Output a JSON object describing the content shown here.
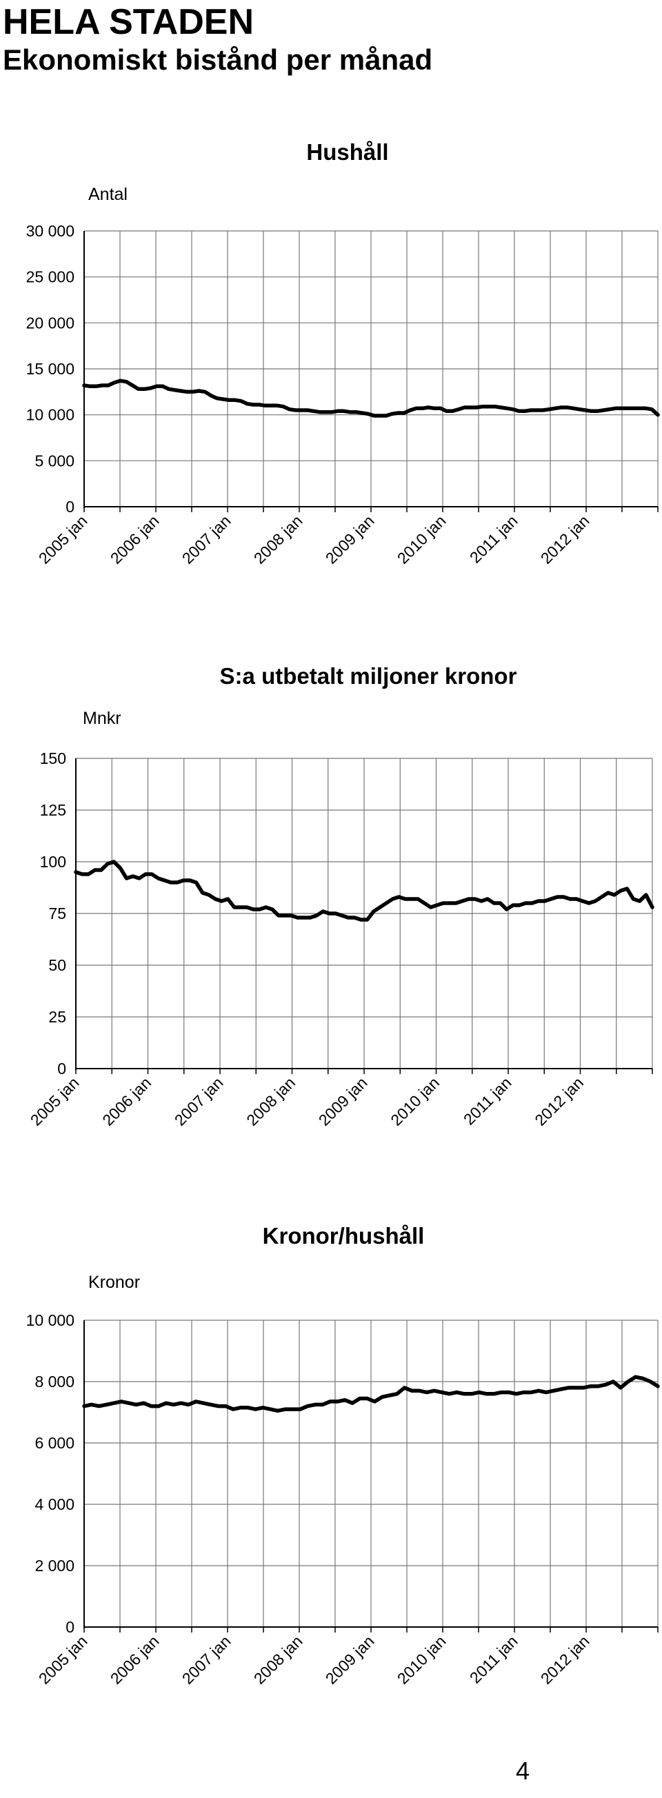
{
  "page": {
    "title": "HELA STADEN",
    "subtitle": "Ekonomiskt bistånd per månad",
    "page_number": "4"
  },
  "chart_data": [
    {
      "type": "line",
      "title": "Hushåll",
      "ylabel": "Antal",
      "xlabel": "",
      "ylim": [
        0,
        30000
      ],
      "yticks": [
        0,
        5000,
        10000,
        15000,
        20000,
        25000,
        30000
      ],
      "ytick_labels": [
        "0",
        "5 000",
        "10 000",
        "15 000",
        "20 000",
        "25 000",
        "30 000"
      ],
      "x_tick_labels": [
        "2005 jan",
        "2006 jan",
        "2007 jan",
        "2008 jan",
        "2009 jan",
        "2010 jan",
        "2011 jan",
        "2012 jan"
      ],
      "grid": true,
      "line_color": "#000000",
      "series": [
        {
          "values": [
            13200,
            13100,
            13100,
            13200,
            13200,
            13500,
            13700,
            13600,
            13200,
            12800,
            12800,
            12900,
            13100,
            13100,
            12800,
            12700,
            12600,
            12500,
            12500,
            12600,
            12500,
            12100,
            11800,
            11700,
            11600,
            11600,
            11500,
            11200,
            11100,
            11100,
            11000,
            11000,
            11000,
            10900,
            10600,
            10500,
            10500,
            10500,
            10400,
            10300,
            10300,
            10300,
            10400,
            10400,
            10300,
            10300,
            10200,
            10100,
            9900,
            9900,
            9900,
            10100,
            10200,
            10200,
            10500,
            10700,
            10700,
            10800,
            10700,
            10700,
            10400,
            10400,
            10600,
            10800,
            10800,
            10800,
            10900,
            10900,
            10900,
            10800,
            10700,
            10600,
            10400,
            10400,
            10500,
            10500,
            10500,
            10600,
            10700,
            10800,
            10800,
            10700,
            10600,
            10500,
            10400,
            10400,
            10500,
            10600,
            10700,
            10700,
            10700,
            10700,
            10700,
            10700,
            10600,
            10000
          ]
        }
      ]
    },
    {
      "type": "line",
      "title": "S:a utbetalt miljoner kronor",
      "ylabel": "Mnkr",
      "xlabel": "",
      "ylim": [
        0,
        150
      ],
      "yticks": [
        0,
        25,
        50,
        75,
        100,
        125,
        150
      ],
      "ytick_labels": [
        "0",
        "25",
        "50",
        "75",
        "100",
        "125",
        "150"
      ],
      "x_tick_labels": [
        "2005 jan",
        "2006 jan",
        "2007 jan",
        "2008 jan",
        "2009 jan",
        "2010 jan",
        "2011 jan",
        "2012 jan"
      ],
      "grid": true,
      "line_color": "#000000",
      "series": [
        {
          "values": [
            95,
            94,
            94,
            96,
            96,
            99,
            100,
            97,
            92,
            93,
            92,
            94,
            94,
            92,
            91,
            90,
            90,
            91,
            91,
            90,
            85,
            84,
            82,
            81,
            82,
            78,
            78,
            78,
            77,
            77,
            78,
            77,
            74,
            74,
            74,
            73,
            73,
            73,
            74,
            76,
            75,
            75,
            74,
            73,
            73,
            72,
            72,
            76,
            78,
            80,
            82,
            83,
            82,
            82,
            82,
            80,
            78,
            79,
            80,
            80,
            80,
            81,
            82,
            82,
            81,
            82,
            80,
            80,
            77,
            79,
            79,
            80,
            80,
            81,
            81,
            82,
            83,
            83,
            82,
            82,
            81,
            80,
            81,
            83,
            85,
            84,
            86,
            87,
            82,
            81,
            84,
            78
          ]
        }
      ]
    },
    {
      "type": "line",
      "title": "Kronor/hushåll",
      "ylabel": "Kronor",
      "xlabel": "",
      "ylim": [
        0,
        10000
      ],
      "yticks": [
        0,
        2000,
        4000,
        6000,
        8000,
        10000
      ],
      "ytick_labels": [
        "0",
        "2 000",
        "4 000",
        "6 000",
        "8 000",
        "10 000"
      ],
      "x_tick_labels": [
        "2005 jan",
        "2006 jan",
        "2007 jan",
        "2008 jan",
        "2009 jan",
        "2010 jan",
        "2011 jan",
        "2012 jan"
      ],
      "grid": true,
      "line_color": "#000000",
      "series": [
        {
          "values": [
            7200,
            7250,
            7200,
            7250,
            7300,
            7350,
            7300,
            7250,
            7300,
            7200,
            7200,
            7300,
            7250,
            7300,
            7250,
            7350,
            7300,
            7250,
            7200,
            7200,
            7100,
            7150,
            7150,
            7100,
            7150,
            7100,
            7050,
            7100,
            7100,
            7100,
            7200,
            7250,
            7250,
            7350,
            7350,
            7400,
            7300,
            7450,
            7450,
            7350,
            7500,
            7550,
            7600,
            7800,
            7700,
            7700,
            7650,
            7700,
            7650,
            7600,
            7650,
            7600,
            7600,
            7650,
            7600,
            7600,
            7650,
            7650,
            7600,
            7650,
            7650,
            7700,
            7650,
            7700,
            7750,
            7800,
            7800,
            7800,
            7850,
            7850,
            7900,
            8000,
            7800,
            8000,
            8150,
            8100,
            8000,
            7850
          ]
        }
      ]
    }
  ]
}
